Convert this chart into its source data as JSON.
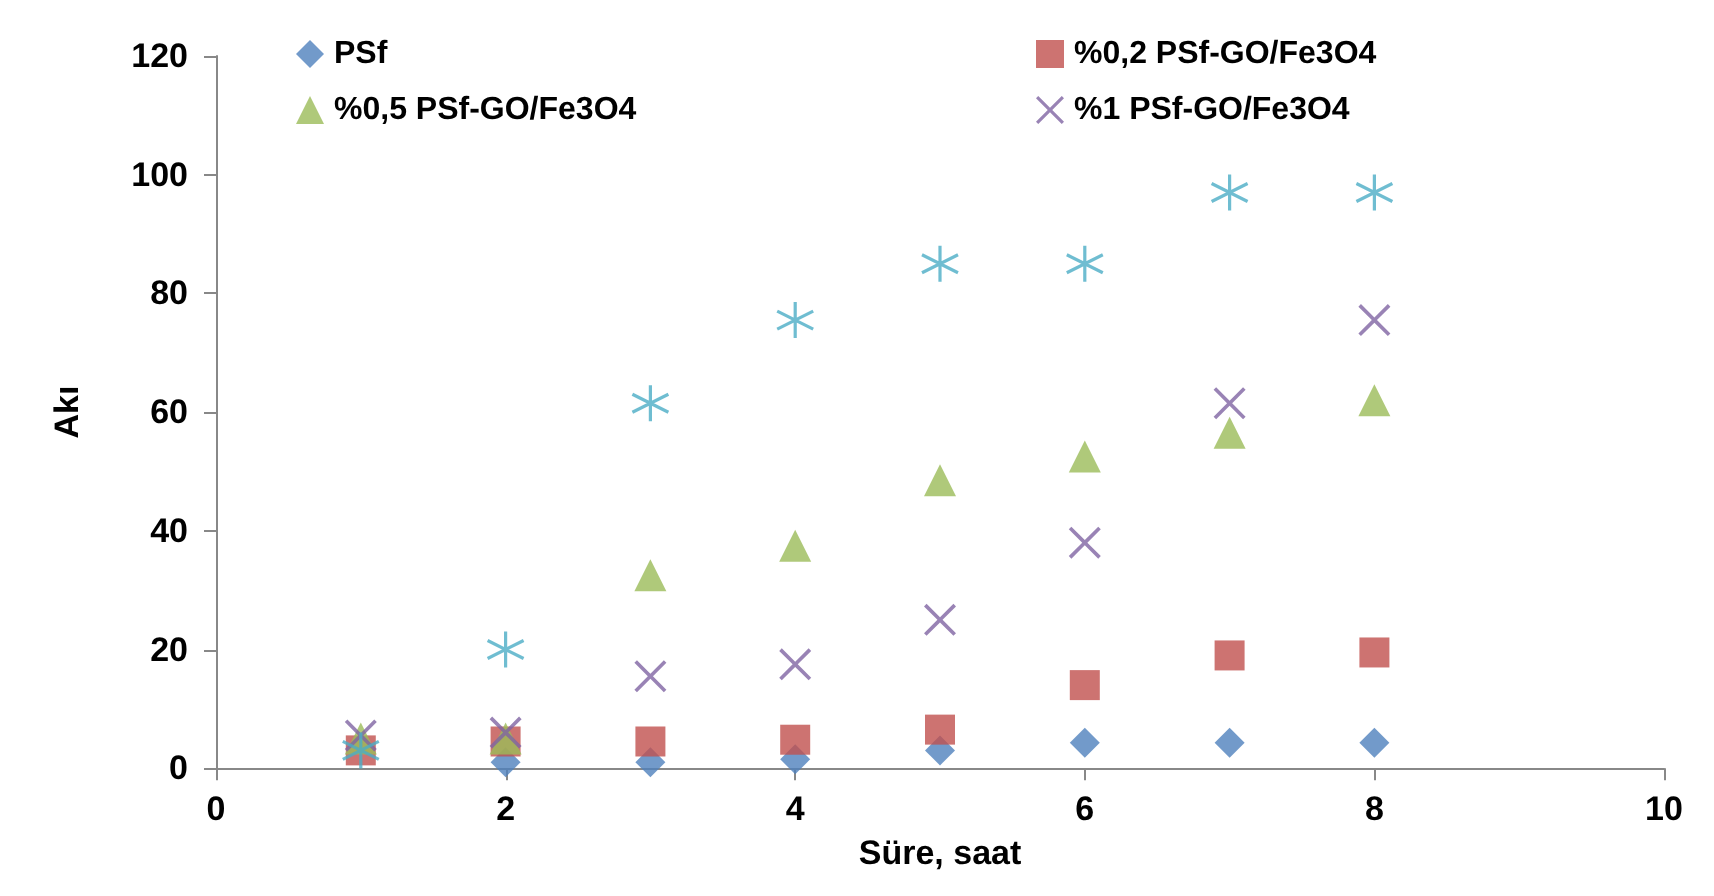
{
  "chart_data": {
    "type": "scatter",
    "xlabel": "Süre, saat",
    "ylabel": "Akı",
    "xlim": [
      0,
      10
    ],
    "xticks": [
      0,
      2,
      4,
      6,
      8,
      10
    ],
    "ylim": [
      0,
      120
    ],
    "yticks": [
      0,
      20,
      40,
      60,
      80,
      100,
      120
    ],
    "grid": false,
    "legend": "top",
    "x": [
      1,
      2,
      3,
      4,
      5,
      6,
      7,
      8
    ],
    "series": [
      {
        "name": "PSf",
        "color": "#4f81bd",
        "marker": "diamond",
        "values": [
          null,
          1,
          1,
          1.5,
          3,
          4.3,
          4.3,
          4.3
        ]
      },
      {
        "name": "%0,2 PSf-GO/Fe3O4",
        "color": "#c0504d",
        "marker": "square",
        "values": [
          3,
          4.5,
          4.5,
          4.8,
          6.5,
          14,
          19,
          19.5
        ]
      },
      {
        "name": "%0,5 PSf-GO/Fe3O4",
        "color": "#9bbb59",
        "marker": "triangle",
        "values": [
          5,
          5,
          32.5,
          37.5,
          48.5,
          52.5,
          56.5,
          62
        ]
      },
      {
        "name": "%1 PSf-GO/Fe3O4",
        "color": "#8064a2",
        "marker": "cross",
        "values": [
          5.5,
          6,
          15.5,
          17.5,
          25,
          38,
          61.5,
          75.5
        ]
      },
      {
        "color": "#4bacc6",
        "marker": "star",
        "values": [
          3,
          20,
          61.5,
          75.5,
          85,
          85,
          97,
          97
        ]
      }
    ]
  }
}
